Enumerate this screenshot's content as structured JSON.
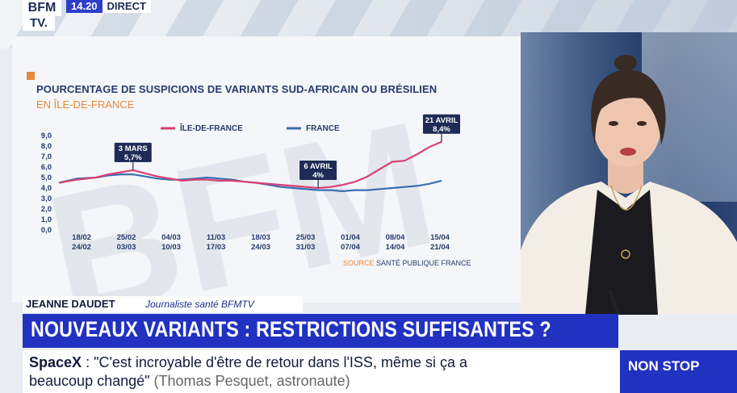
{
  "channel": {
    "logo_top": "BFM",
    "logo_bottom": "TV.",
    "time": "14.20",
    "live_label": "DIRECT"
  },
  "chart": {
    "title": "POURCENTAGE DE SUSPICIONS DE VARIANTS SUD-AFRICAIN OU BRÉSILIEN",
    "subtitle": "EN ÎLE-DE-FRANCE",
    "source_label": "SOURCE",
    "source_value": "SANTÉ PUBLIQUE FRANCE",
    "colors": {
      "ile_de_france": "#d94070",
      "france": "#3a6fb0",
      "axis_text": "#263a6b"
    }
  },
  "chart_data": {
    "type": "line",
    "y_ticks": [
      "9,0",
      "8,0",
      "7,0",
      "6,0",
      "5,0",
      "4,0",
      "3,0",
      "2,0",
      "1,0",
      "0,0"
    ],
    "ylim": [
      0,
      9
    ],
    "x_ticks": [
      {
        "top": "18/02",
        "bottom": "24/02"
      },
      {
        "top": "25/02",
        "bottom": "03/03"
      },
      {
        "top": "04/03",
        "bottom": "10/03"
      },
      {
        "top": "11/03",
        "bottom": "17/03"
      },
      {
        "top": "18/03",
        "bottom": "24/03"
      },
      {
        "top": "25/03",
        "bottom": "31/03"
      },
      {
        "top": "01/04",
        "bottom": "07/04"
      },
      {
        "top": "08/04",
        "bottom": "14/04"
      },
      {
        "top": "15/04",
        "bottom": "21/04"
      }
    ],
    "x_domain": [
      0,
      62
    ],
    "series": [
      {
        "name": "ÎLE-DE-FRANCE",
        "color": "#d94070",
        "points": [
          [
            0,
            4.5
          ],
          [
            3,
            4.8
          ],
          [
            6,
            5.0
          ],
          [
            8,
            5.3
          ],
          [
            10,
            5.5
          ],
          [
            12,
            5.7
          ],
          [
            14,
            5.4
          ],
          [
            16,
            5.1
          ],
          [
            18,
            4.9
          ],
          [
            20,
            4.7
          ],
          [
            22,
            4.8
          ],
          [
            24,
            4.8
          ],
          [
            26,
            4.7
          ],
          [
            28,
            4.7
          ],
          [
            30,
            4.6
          ],
          [
            32,
            4.5
          ],
          [
            34,
            4.4
          ],
          [
            36,
            4.3
          ],
          [
            38,
            4.2
          ],
          [
            40,
            4.1
          ],
          [
            42,
            4.0
          ],
          [
            44,
            4.1
          ],
          [
            46,
            4.3
          ],
          [
            48,
            4.6
          ],
          [
            50,
            5.1
          ],
          [
            52,
            5.8
          ],
          [
            54,
            6.5
          ],
          [
            56,
            6.6
          ],
          [
            58,
            7.2
          ],
          [
            60,
            7.9
          ],
          [
            62,
            8.4
          ]
        ]
      },
      {
        "name": "FRANCE",
        "color": "#3a6fb0",
        "points": [
          [
            0,
            4.5
          ],
          [
            3,
            4.9
          ],
          [
            6,
            5.0
          ],
          [
            8,
            5.2
          ],
          [
            10,
            5.3
          ],
          [
            12,
            5.3
          ],
          [
            14,
            5.1
          ],
          [
            16,
            4.9
          ],
          [
            18,
            4.8
          ],
          [
            20,
            4.8
          ],
          [
            22,
            4.9
          ],
          [
            24,
            5.0
          ],
          [
            26,
            4.9
          ],
          [
            28,
            4.8
          ],
          [
            30,
            4.6
          ],
          [
            32,
            4.5
          ],
          [
            34,
            4.3
          ],
          [
            36,
            4.1
          ],
          [
            38,
            4.0
          ],
          [
            40,
            3.9
          ],
          [
            42,
            3.8
          ],
          [
            44,
            3.8
          ],
          [
            46,
            3.7
          ],
          [
            48,
            3.8
          ],
          [
            50,
            3.8
          ],
          [
            52,
            3.9
          ],
          [
            54,
            4.0
          ],
          [
            56,
            4.1
          ],
          [
            58,
            4.2
          ],
          [
            60,
            4.4
          ],
          [
            62,
            4.7
          ]
        ]
      }
    ],
    "annotations": [
      {
        "date": "3 MARS",
        "value": "5,7%",
        "x": 12,
        "y": 5.7
      },
      {
        "date": "6 AVRIL",
        "value": "4%",
        "x": 42,
        "y": 4.0
      },
      {
        "date": "21 AVRIL",
        "value": "8,4%",
        "x": 62,
        "y": 8.4
      }
    ]
  },
  "lower_third": {
    "name": "JEANNE DAUDET",
    "role": "Journaliste santé BFMTV"
  },
  "headline": "NOUVEAUX VARIANTS : RESTRICTIONS SUFFISANTES ?",
  "ticker": {
    "topic": "SpaceX",
    "quote_part1": ": \"C'est incroyable d'être de retour dans l'ISS, même si ça a",
    "quote_part2": "beaucoup changé\"",
    "attribution": "(Thomas Pesquet, astronaute)"
  },
  "badge": "NON STOP"
}
